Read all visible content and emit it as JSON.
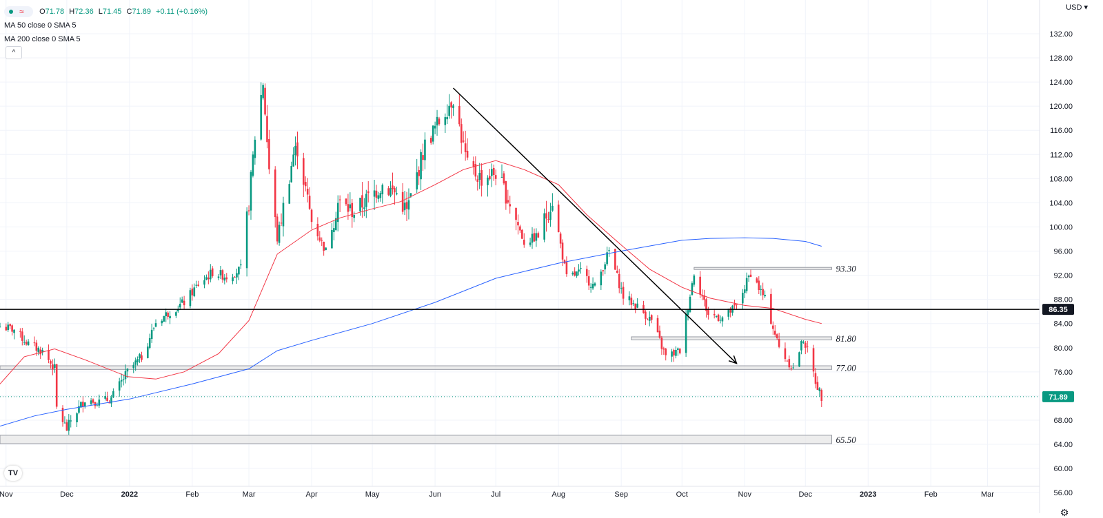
{
  "legend": {
    "symbol_icon": "symbol-status-icon",
    "open_key": "O",
    "open": "71.78",
    "high_key": "H",
    "high": "72.36",
    "low_key": "L",
    "low": "71.45",
    "close_key": "C",
    "close": "71.89",
    "change": "+0.11 (+0.16%)",
    "ma50_label": "MA 50 close 0 SMA 5",
    "ma200_label": "MA 200 close 0 SMA 5",
    "collapse_glyph": "^"
  },
  "currency_label": "USD",
  "currency_glyph": "▾",
  "logo_text": "TV",
  "settings_glyph": "⚙",
  "colors": {
    "up": "#089981",
    "down": "#f23645",
    "ma50": "#f23645",
    "ma200": "#2962ff",
    "grid": "#f0f3fa",
    "text": "#131722",
    "zone_fill": "#e6e6e6",
    "zone_stroke": "#9598a1"
  },
  "chart_data": {
    "type": "candlestick",
    "title": "",
    "ylim": [
      54.5,
      133.5
    ],
    "y_ticks": [
      "56.00",
      "60.00",
      "64.00",
      "68.00",
      "72.00",
      "76.00",
      "80.00",
      "84.00",
      "88.00",
      "92.00",
      "96.00",
      "100.00",
      "104.00",
      "108.00",
      "112.00",
      "116.00",
      "120.00",
      "124.00",
      "128.00",
      "132.00"
    ],
    "x_start": "2021-10-29",
    "x_end": "2023-03-24",
    "x_ticks": [
      {
        "date": "2021-11-01",
        "label": "Nov"
      },
      {
        "date": "2021-12-01",
        "label": "Dec"
      },
      {
        "date": "2022-01-01",
        "label": "2022"
      },
      {
        "date": "2022-02-01",
        "label": "Feb"
      },
      {
        "date": "2022-03-01",
        "label": "Mar"
      },
      {
        "date": "2022-04-01",
        "label": "Apr"
      },
      {
        "date": "2022-05-01",
        "label": "May"
      },
      {
        "date": "2022-06-01",
        "label": "Jun"
      },
      {
        "date": "2022-07-01",
        "label": "Jul"
      },
      {
        "date": "2022-08-01",
        "label": "Aug"
      },
      {
        "date": "2022-09-01",
        "label": "Sep"
      },
      {
        "date": "2022-10-01",
        "label": "Oct"
      },
      {
        "date": "2022-11-01",
        "label": "Nov"
      },
      {
        "date": "2022-12-01",
        "label": "Dec"
      },
      {
        "date": "2023-01-01",
        "label": "2023"
      },
      {
        "date": "2023-02-01",
        "label": "Feb"
      },
      {
        "date": "2023-03-01",
        "label": "Mar"
      }
    ],
    "close_path": [
      [
        "2021-10-29",
        83.5
      ],
      [
        "2021-11-05",
        83.0
      ],
      [
        "2021-11-12",
        80.6
      ],
      [
        "2021-11-19",
        79.4
      ],
      [
        "2021-11-25",
        76.5
      ],
      [
        "2021-11-26",
        70.0
      ],
      [
        "2021-12-01",
        66.5
      ],
      [
        "2021-12-03",
        68.0
      ],
      [
        "2021-12-10",
        71.5
      ],
      [
        "2021-12-17",
        71.0
      ],
      [
        "2021-12-23",
        71.6
      ],
      [
        "2021-12-31",
        76.0
      ],
      [
        "2022-01-07",
        78.5
      ],
      [
        "2022-01-14",
        84.2
      ],
      [
        "2022-01-21",
        86.0
      ],
      [
        "2022-01-28",
        87.5
      ],
      [
        "2022-02-04",
        90.5
      ],
      [
        "2022-02-11",
        92.5
      ],
      [
        "2022-02-18",
        91.8
      ],
      [
        "2022-02-25",
        93.0
      ],
      [
        "2022-03-01",
        104.0
      ],
      [
        "2022-03-04",
        115.0
      ],
      [
        "2022-03-08",
        124.0
      ],
      [
        "2022-03-11",
        109.5
      ],
      [
        "2022-03-15",
        98.0
      ],
      [
        "2022-03-23",
        112.0
      ],
      [
        "2022-03-25",
        113.0
      ],
      [
        "2022-04-01",
        101.0
      ],
      [
        "2022-04-08",
        96.0
      ],
      [
        "2022-04-14",
        104.0
      ],
      [
        "2022-04-22",
        102.5
      ],
      [
        "2022-04-29",
        104.8
      ],
      [
        "2022-05-06",
        107.0
      ],
      [
        "2022-05-13",
        105.5
      ],
      [
        "2022-05-18",
        102.5
      ],
      [
        "2022-05-27",
        113.5
      ],
      [
        "2022-06-03",
        117.5
      ],
      [
        "2022-06-10",
        121.5
      ],
      [
        "2022-06-17",
        110.0
      ],
      [
        "2022-06-24",
        108.0
      ],
      [
        "2022-07-01",
        109.0
      ],
      [
        "2022-07-08",
        104.0
      ],
      [
        "2022-07-15",
        97.5
      ],
      [
        "2022-07-22",
        98.5
      ],
      [
        "2022-07-29",
        104.5
      ],
      [
        "2022-08-05",
        91.5
      ],
      [
        "2022-08-12",
        92.5
      ],
      [
        "2022-08-19",
        90.0
      ],
      [
        "2022-08-26",
        96.0
      ],
      [
        "2022-09-02",
        88.5
      ],
      [
        "2022-09-09",
        86.8
      ],
      [
        "2022-09-16",
        84.5
      ],
      [
        "2022-09-23",
        78.5
      ],
      [
        "2022-09-30",
        79.5
      ],
      [
        "2022-10-07",
        92.5
      ],
      [
        "2022-10-14",
        85.5
      ],
      [
        "2022-10-21",
        85.0
      ],
      [
        "2022-10-28",
        86.8
      ],
      [
        "2022-11-04",
        92.5
      ],
      [
        "2022-11-11",
        88.0
      ],
      [
        "2022-11-18",
        80.0
      ],
      [
        "2022-11-25",
        76.5
      ],
      [
        "2022-11-30",
        81.5
      ],
      [
        "2022-12-02",
        79.5
      ],
      [
        "2022-12-06",
        74.5
      ],
      [
        "2022-12-09",
        71.89
      ]
    ],
    "series": [
      {
        "name": "MA 50",
        "color": "#f23645",
        "points": [
          [
            "2021-10-29",
            74.0
          ],
          [
            "2021-11-10",
            78.5
          ],
          [
            "2021-11-25",
            79.8
          ],
          [
            "2021-12-10",
            78.0
          ],
          [
            "2021-12-31",
            75.2
          ],
          [
            "2022-01-14",
            74.8
          ],
          [
            "2022-01-28",
            76.0
          ],
          [
            "2022-02-14",
            79.0
          ],
          [
            "2022-03-01",
            84.5
          ],
          [
            "2022-03-15",
            95.5
          ],
          [
            "2022-04-01",
            99.5
          ],
          [
            "2022-04-15",
            101.5
          ],
          [
            "2022-05-01",
            103.0
          ],
          [
            "2022-05-15",
            104.2
          ],
          [
            "2022-06-01",
            107.0
          ],
          [
            "2022-06-15",
            109.5
          ],
          [
            "2022-07-01",
            111.0
          ],
          [
            "2022-07-15",
            109.5
          ],
          [
            "2022-08-01",
            107.0
          ],
          [
            "2022-08-15",
            102.0
          ],
          [
            "2022-09-01",
            97.0
          ],
          [
            "2022-09-15",
            93.0
          ],
          [
            "2022-10-01",
            90.0
          ],
          [
            "2022-10-15",
            88.2
          ],
          [
            "2022-11-01",
            87.0
          ],
          [
            "2022-11-15",
            86.5
          ],
          [
            "2022-12-01",
            84.7
          ],
          [
            "2022-12-09",
            84.0
          ]
        ]
      },
      {
        "name": "MA 200",
        "color": "#2962ff",
        "points": [
          [
            "2021-10-29",
            67.0
          ],
          [
            "2021-11-15",
            68.7
          ],
          [
            "2021-12-01",
            69.8
          ],
          [
            "2022-01-01",
            71.5
          ],
          [
            "2022-02-01",
            74.0
          ],
          [
            "2022-03-01",
            76.5
          ],
          [
            "2022-03-15",
            79.5
          ],
          [
            "2022-04-01",
            81.2
          ],
          [
            "2022-05-01",
            84.0
          ],
          [
            "2022-06-01",
            87.5
          ],
          [
            "2022-07-01",
            91.5
          ],
          [
            "2022-08-01",
            94.0
          ],
          [
            "2022-09-01",
            96.0
          ],
          [
            "2022-10-01",
            97.8
          ],
          [
            "2022-10-15",
            98.1
          ],
          [
            "2022-11-01",
            98.2
          ],
          [
            "2022-11-15",
            98.1
          ],
          [
            "2022-12-01",
            97.6
          ],
          [
            "2022-12-09",
            96.8
          ]
        ]
      }
    ],
    "support_zones": [
      {
        "start": "2021-10-29",
        "end": "2022-12-14",
        "low": 64.1,
        "high": 65.5,
        "label": "65.50"
      },
      {
        "start": "2021-10-29",
        "end": "2022-12-14",
        "low": 76.4,
        "high": 77.0,
        "label": "77.00"
      },
      {
        "start": "2022-09-06",
        "end": "2022-12-14",
        "low": 81.3,
        "high": 81.8,
        "label": "81.80"
      },
      {
        "start": "2022-10-07",
        "end": "2022-12-14",
        "low": 93.0,
        "high": 93.3,
        "label": "93.30"
      }
    ],
    "horizontal_line": {
      "value": 86.35,
      "label": "86.35"
    },
    "trend_arrow": {
      "start": [
        "2022-06-10",
        123.0
      ],
      "end": [
        "2022-10-28",
        77.4
      ]
    },
    "last_price": {
      "value": 71.89,
      "label": "71.89"
    }
  }
}
